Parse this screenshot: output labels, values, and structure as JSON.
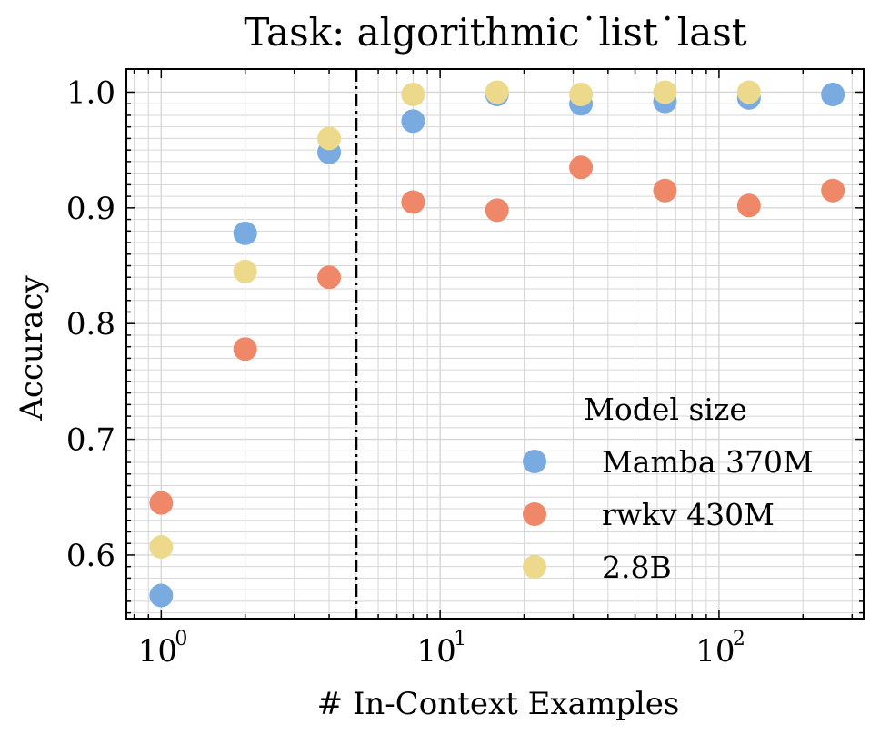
{
  "chart_data": {
    "type": "scatter",
    "title": "Task: algorithmic˙list˙last",
    "xlabel": "# In-Context Examples",
    "ylabel": "Accuracy",
    "xscale": "log",
    "xlim": [
      0.75,
      330
    ],
    "ylim": [
      0.545,
      1.02
    ],
    "x_ticks": [
      {
        "base": "10",
        "exp": "0",
        "value": 1
      },
      {
        "base": "10",
        "exp": "1",
        "value": 10
      },
      {
        "base": "10",
        "exp": "2",
        "value": 100
      }
    ],
    "y_ticks": [
      "0.6",
      "0.7",
      "0.8",
      "0.9",
      "1.0"
    ],
    "grid": true,
    "vline": {
      "x": 5,
      "style": "dash-dot",
      "color": "#000000"
    },
    "legend": {
      "title": "Model size",
      "position": "lower-right"
    },
    "series": [
      {
        "name": "Mamba 370M",
        "color": "#7aabe0",
        "x": [
          1,
          2,
          4,
          8,
          16,
          32,
          64,
          128,
          256
        ],
        "y": [
          0.565,
          0.878,
          0.948,
          0.975,
          0.998,
          0.99,
          0.992,
          0.995,
          0.998
        ]
      },
      {
        "name": "rwkv 430M",
        "color": "#ef8769",
        "x": [
          1,
          2,
          4,
          8,
          16,
          32,
          64,
          128,
          256
        ],
        "y": [
          0.645,
          0.778,
          0.84,
          0.905,
          0.898,
          0.935,
          0.915,
          0.902,
          0.915
        ]
      },
      {
        "name": "2.8B",
        "color": "#ecd98b",
        "x": [
          1,
          2,
          4,
          8,
          16,
          32,
          64,
          128
        ],
        "y": [
          0.607,
          0.845,
          0.96,
          0.998,
          1.0,
          0.998,
          1.0,
          1.0
        ]
      }
    ]
  }
}
